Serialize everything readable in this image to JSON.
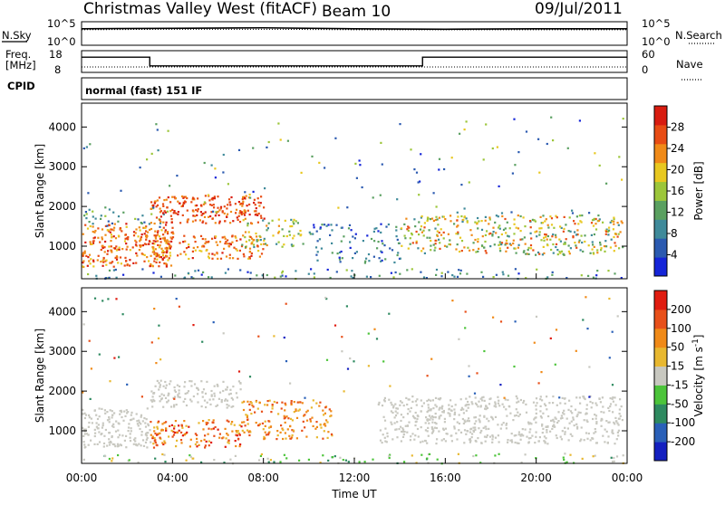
{
  "header": {
    "station": "Christmas Valley West (fitACF)",
    "beam": "Beam 10",
    "date": "09/Jul/2011"
  },
  "mode_text": "normal (fast) 151 IF",
  "colors": {
    "text": "#000000",
    "background": "#ffffff",
    "scatter_gray": "#c8c8c0"
  },
  "chart_data": [
    {
      "type": "line",
      "panel": "noise",
      "labels_left": [
        "N.Sky",
        "10^5",
        "10^0"
      ],
      "labels_right": [
        "10^5",
        "10^0",
        "N.Search"
      ],
      "x": [
        "00:00",
        "04:00",
        "08:00",
        "12:00",
        "16:00",
        "20:00",
        "00:00"
      ],
      "ylim": [
        0,
        5
      ],
      "series": [
        {
          "values": [
            3.5,
            3.6,
            3.7,
            3.5,
            3.4,
            3.5,
            3.5
          ]
        },
        {
          "values": [
            3.3,
            3.4,
            3.4,
            3.3,
            3.3,
            3.3,
            3.3
          ]
        }
      ]
    },
    {
      "type": "line",
      "panel": "frequency",
      "labels_left": [
        "Freq.",
        "[MHz]",
        "18",
        "8",
        "CPID"
      ],
      "labels_right": [
        "60",
        "0",
        "Nave"
      ],
      "series": [
        {
          "x_hours": [
            0,
            3,
            3,
            15,
            15,
            24
          ],
          "values": [
            15,
            15,
            11,
            11,
            15,
            15
          ]
        },
        {
          "x_hours": [
            0,
            24
          ],
          "values": [
            10.5,
            10.5
          ]
        }
      ]
    },
    {
      "type": "heatmap",
      "panel": "power",
      "ylabel": "Slant Range [km]",
      "yticks": [
        "1000",
        "2000",
        "3000",
        "4000"
      ],
      "xlim_hours": [
        0,
        24
      ],
      "ylim_km": [
        180,
        4600
      ],
      "colorbar": {
        "label": "Power [dB]",
        "ticks": [
          "4",
          "8",
          "12",
          "16",
          "20",
          "24",
          "28"
        ],
        "colors": [
          "#1525d8",
          "#2b5ab0",
          "#3f8a9a",
          "#5aa060",
          "#9cc63a",
          "#e8c820",
          "#f08a18",
          "#e84c14",
          "#d81c10"
        ]
      }
    },
    {
      "type": "heatmap",
      "panel": "velocity",
      "ylabel": "Slant Range [km]",
      "yticks": [
        "1000",
        "2000",
        "3000",
        "4000"
      ],
      "xlim_hours": [
        0,
        24
      ],
      "ylim_km": [
        180,
        4600
      ],
      "xticks": [
        "00:00",
        "04:00",
        "08:00",
        "12:00",
        "16:00",
        "20:00",
        "00:00"
      ],
      "xlabel": "Time UT",
      "colorbar": {
        "label": "Velocity [m s",
        "label_sup": "-1",
        "label_end": "]",
        "ticks": [
          "200",
          "100",
          "50",
          "15",
          "-15",
          "-50",
          "-100",
          "-200"
        ],
        "colors": [
          "#1420c0",
          "#2a60b8",
          "#2e8a60",
          "#4cc43a",
          "#c8c8c0",
          "#e8b830",
          "#f08a18",
          "#e8501a",
          "#e01c10"
        ]
      }
    }
  ]
}
